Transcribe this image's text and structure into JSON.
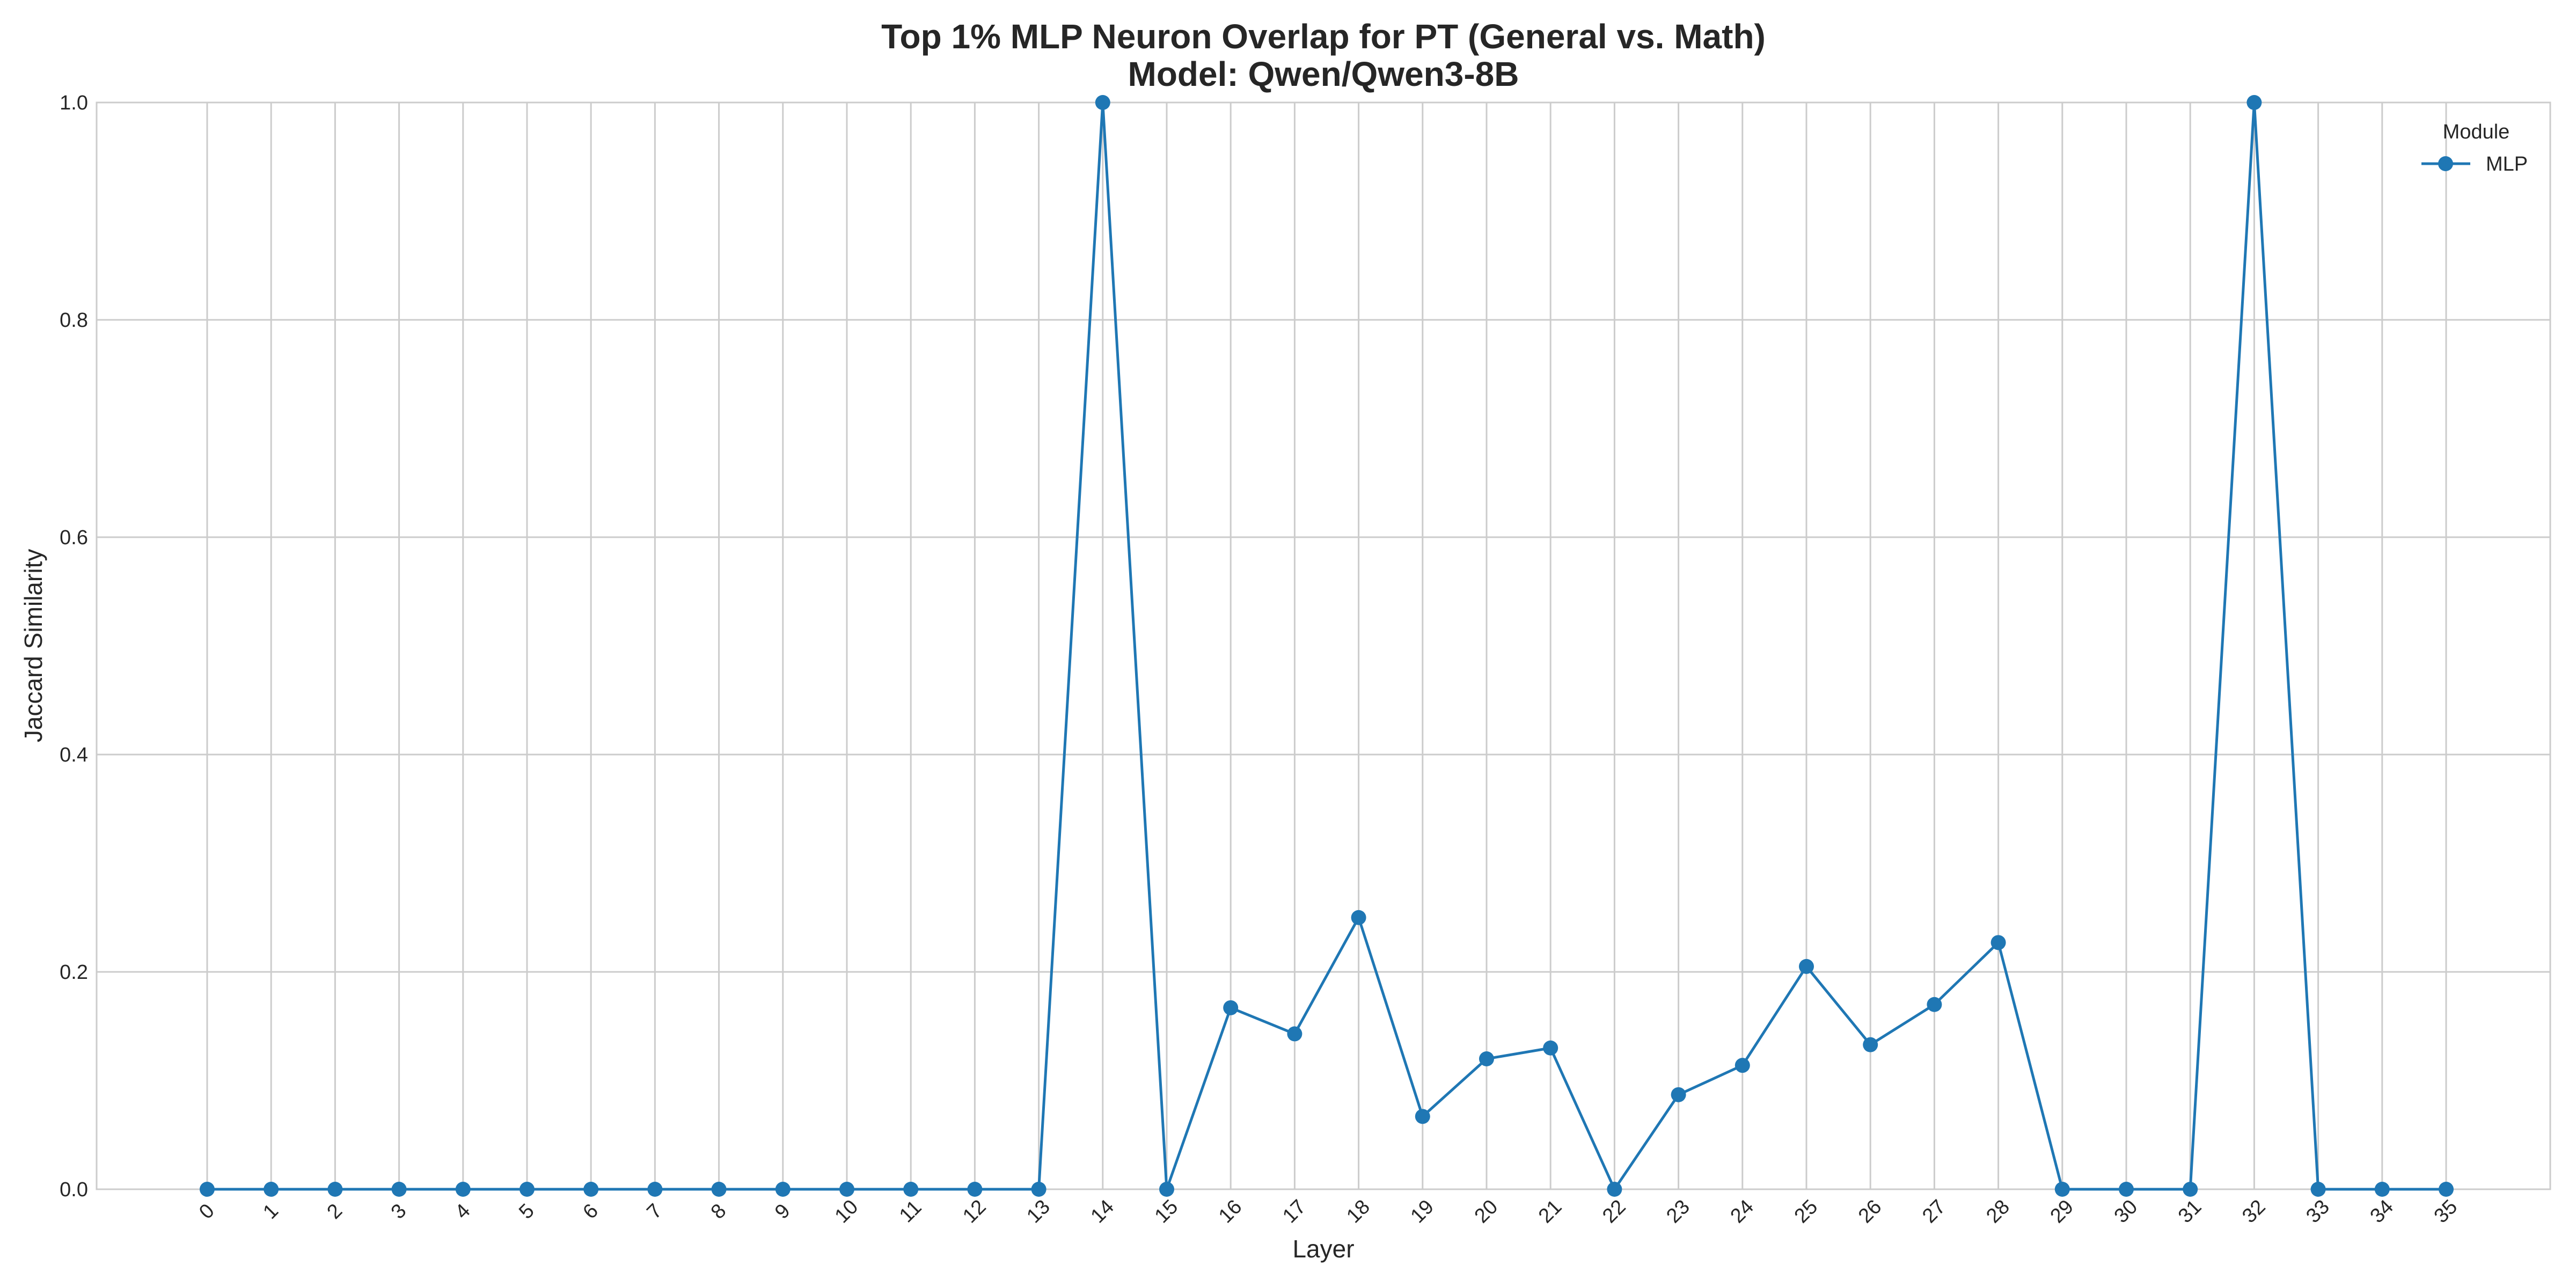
{
  "chart_data": {
    "type": "line",
    "title": "Top 1% MLP Neuron Overlap for PT (General vs. Math)",
    "subtitle": "Model: Qwen/Qwen3-8B",
    "xlabel": "Layer",
    "ylabel": "Jaccard Similarity",
    "ylim": [
      0,
      1.0
    ],
    "yticks": [
      "0.0",
      "0.2",
      "0.4",
      "0.6",
      "0.8",
      "1.0"
    ],
    "grid": true,
    "x": [
      "0",
      "1",
      "2",
      "3",
      "4",
      "5",
      "6",
      "7",
      "8",
      "9",
      "10",
      "11",
      "12",
      "13",
      "14",
      "15",
      "16",
      "17",
      "18",
      "19",
      "20",
      "21",
      "22",
      "23",
      "24",
      "25",
      "26",
      "27",
      "28",
      "29",
      "30",
      "31",
      "32",
      "33",
      "34",
      "35"
    ],
    "legend": {
      "title": "Module",
      "placement": "top-right"
    },
    "series": [
      {
        "name": "MLP",
        "color": "#1f77b4",
        "marker": "circle",
        "values": [
          0,
          0,
          0,
          0,
          0,
          0,
          0,
          0,
          0,
          0,
          0,
          0,
          0,
          0,
          1.0,
          0,
          0.167,
          0.143,
          0.25,
          0.067,
          0.12,
          0.13,
          0,
          0.087,
          0.114,
          0.205,
          0.133,
          0.17,
          0.227,
          0,
          0,
          0,
          1.0,
          0,
          0,
          0
        ]
      }
    ]
  }
}
